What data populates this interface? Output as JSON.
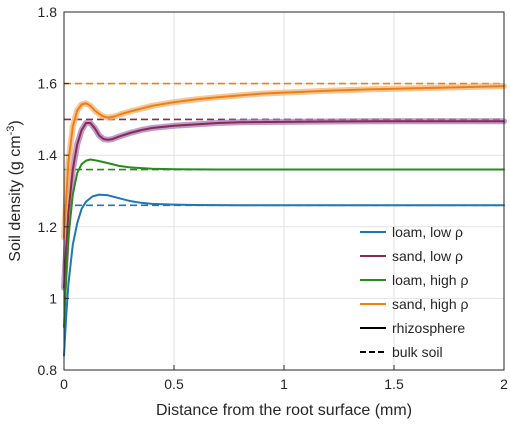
{
  "chart_data": {
    "type": "line",
    "xlabel": "Distance from the root surface (mm)",
    "ylabel": {
      "main": "Soil density (g cm",
      "sup": "-3",
      "close": ")"
    },
    "xlim": [
      0,
      2
    ],
    "ylim": [
      0.8,
      1.8
    ],
    "xticks": [
      0,
      0.5,
      1,
      1.5,
      2
    ],
    "xtick_labels": [
      "0",
      "0.5",
      "1",
      "1.5",
      "2"
    ],
    "yticks": [
      0.8,
      1.0,
      1.2,
      1.4,
      1.6,
      1.8
    ],
    "ytick_labels": [
      "0.8",
      "1",
      "1.2",
      "1.4",
      "1.6",
      "1.8"
    ],
    "grid": true,
    "legend_position": "bottom-right",
    "series": [
      {
        "name": "loam, low ρ",
        "color": "#1f77b4",
        "bulk_density": 1.26,
        "x": [
          0,
          0.01,
          0.02,
          0.04,
          0.06,
          0.08,
          0.1,
          0.13,
          0.16,
          0.2,
          0.25,
          0.3,
          0.35,
          0.4,
          0.5,
          0.6,
          0.8,
          1.0,
          1.5,
          2.0
        ],
        "y": [
          0.84,
          0.95,
          1.04,
          1.15,
          1.21,
          1.25,
          1.27,
          1.285,
          1.29,
          1.288,
          1.28,
          1.272,
          1.267,
          1.264,
          1.262,
          1.261,
          1.26,
          1.26,
          1.26,
          1.26
        ]
      },
      {
        "name": "sand, low ρ",
        "color": "#8b2a4a",
        "band_color": "#a77bc2",
        "bulk_density": 1.5,
        "x": [
          0,
          0.01,
          0.02,
          0.04,
          0.06,
          0.08,
          0.1,
          0.12,
          0.14,
          0.16,
          0.18,
          0.2,
          0.22,
          0.25,
          0.3,
          0.35,
          0.4,
          0.5,
          0.6,
          0.7,
          0.8,
          1.0,
          1.2,
          1.5,
          1.8,
          2.0
        ],
        "y": [
          1.03,
          1.14,
          1.24,
          1.36,
          1.43,
          1.47,
          1.49,
          1.49,
          1.475,
          1.455,
          1.445,
          1.443,
          1.445,
          1.452,
          1.462,
          1.47,
          1.476,
          1.482,
          1.486,
          1.49,
          1.492,
          1.493,
          1.494,
          1.495,
          1.495,
          1.495
        ]
      },
      {
        "name": "loam, high ρ",
        "color": "#2a8a1e",
        "bulk_density": 1.36,
        "x": [
          0,
          0.01,
          0.02,
          0.04,
          0.06,
          0.08,
          0.1,
          0.12,
          0.15,
          0.2,
          0.25,
          0.3,
          0.4,
          0.5,
          0.7,
          1.0,
          1.5,
          2.0
        ],
        "y": [
          0.92,
          1.06,
          1.17,
          1.29,
          1.35,
          1.375,
          1.385,
          1.388,
          1.385,
          1.378,
          1.37,
          1.366,
          1.362,
          1.361,
          1.36,
          1.36,
          1.36,
          1.36
        ]
      },
      {
        "name": "sand, high ρ",
        "color": "#f07f12",
        "band_color": "#f2b478",
        "bulk_density": 1.6,
        "x": [
          0,
          0.01,
          0.02,
          0.04,
          0.06,
          0.08,
          0.1,
          0.12,
          0.14,
          0.16,
          0.18,
          0.2,
          0.23,
          0.26,
          0.3,
          0.35,
          0.4,
          0.5,
          0.6,
          0.7,
          0.8,
          0.9,
          1.0,
          1.2,
          1.4,
          1.6,
          1.8,
          2.0
        ],
        "y": [
          1.17,
          1.28,
          1.38,
          1.48,
          1.525,
          1.542,
          1.545,
          1.538,
          1.525,
          1.515,
          1.508,
          1.505,
          1.508,
          1.515,
          1.522,
          1.53,
          1.538,
          1.548,
          1.556,
          1.562,
          1.567,
          1.572,
          1.575,
          1.58,
          1.584,
          1.587,
          1.59,
          1.593
        ]
      }
    ],
    "legend": [
      {
        "label": "loam, low ρ",
        "color": "#1f77b4",
        "style": "solid"
      },
      {
        "label": "sand, low ρ",
        "color": "#8b2a4a",
        "style": "solid"
      },
      {
        "label": "loam, high ρ",
        "color": "#2a8a1e",
        "style": "solid"
      },
      {
        "label": "sand, high ρ",
        "color": "#f07f12",
        "style": "solid"
      },
      {
        "label": "rhizosphere",
        "color": "#000000",
        "style": "solid"
      },
      {
        "label": "bulk soil",
        "color": "#000000",
        "style": "dashed"
      }
    ]
  }
}
